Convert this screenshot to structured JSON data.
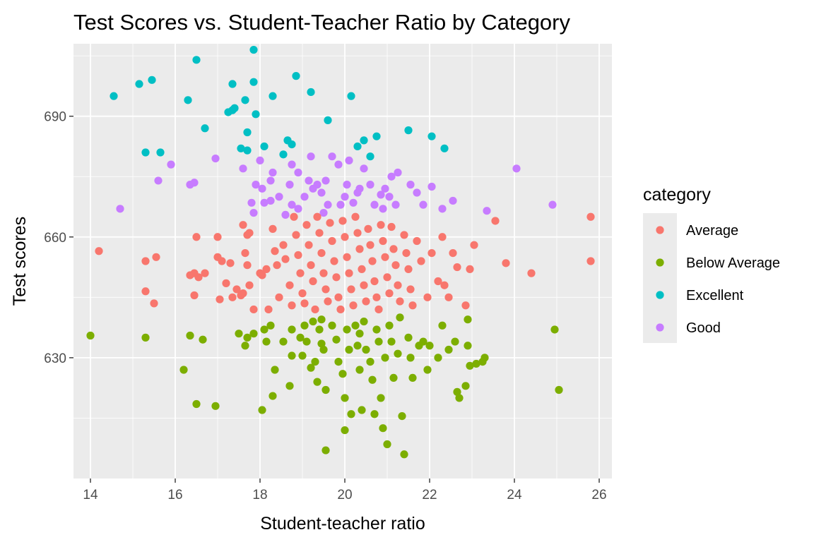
{
  "chart_data": {
    "type": "scatter",
    "title": "Test Scores vs. Student-Teacher Ratio by Category",
    "xlabel": "Student-teacher ratio",
    "ylabel": "Test scores",
    "xlim": [
      13.6,
      26.3
    ],
    "ylim": [
      600,
      708
    ],
    "x_ticks": [
      14,
      16,
      18,
      20,
      22,
      24,
      26
    ],
    "y_ticks": [
      630,
      660,
      690
    ],
    "grid": true,
    "legend": {
      "title": "category",
      "position": "right",
      "entries": [
        {
          "name": "Average",
          "color": "#F8766D"
        },
        {
          "name": "Below Average",
          "color": "#7CAE00"
        },
        {
          "name": "Excellent",
          "color": "#00BFC4"
        },
        {
          "name": "Good",
          "color": "#C77CFF"
        }
      ]
    },
    "series": [
      {
        "name": "Excellent",
        "color": "#00BFC4",
        "points": [
          [
            14.55,
            695
          ],
          [
            15.15,
            698
          ],
          [
            15.45,
            699
          ],
          [
            15.3,
            681
          ],
          [
            15.65,
            681
          ],
          [
            16.3,
            694
          ],
          [
            16.5,
            704
          ],
          [
            16.7,
            687
          ],
          [
            17.25,
            691
          ],
          [
            17.35,
            691.5
          ],
          [
            17.4,
            692
          ],
          [
            17.35,
            698
          ],
          [
            17.65,
            694
          ],
          [
            17.7,
            686
          ],
          [
            17.55,
            682
          ],
          [
            17.7,
            681.5
          ],
          [
            17.9,
            690.5
          ],
          [
            17.85,
            698.5
          ],
          [
            17.85,
            706.5
          ],
          [
            18.1,
            682.5
          ],
          [
            18.3,
            695
          ],
          [
            18.55,
            680.5
          ],
          [
            18.65,
            684
          ],
          [
            18.75,
            683
          ],
          [
            18.85,
            700
          ],
          [
            19.2,
            696
          ],
          [
            19.6,
            689
          ],
          [
            20.15,
            695
          ],
          [
            20.3,
            682.5
          ],
          [
            20.45,
            684
          ],
          [
            20.6,
            680
          ],
          [
            20.75,
            685
          ],
          [
            21.5,
            686.5
          ],
          [
            22.05,
            685
          ],
          [
            22.35,
            682
          ]
        ]
      },
      {
        "name": "Good",
        "color": "#C77CFF",
        "points": [
          [
            14.7,
            667
          ],
          [
            15.6,
            674
          ],
          [
            15.9,
            678
          ],
          [
            16.35,
            673
          ],
          [
            16.45,
            673.5
          ],
          [
            16.95,
            679.5
          ],
          [
            17.6,
            677
          ],
          [
            17.9,
            673
          ],
          [
            17.8,
            668.5
          ],
          [
            17.85,
            666
          ],
          [
            18.05,
            672
          ],
          [
            18.0,
            679
          ],
          [
            18.25,
            674
          ],
          [
            18.3,
            676
          ],
          [
            18.1,
            668.5
          ],
          [
            18.25,
            669
          ],
          [
            18.45,
            670
          ],
          [
            18.6,
            665.5
          ],
          [
            18.75,
            668
          ],
          [
            18.7,
            673
          ],
          [
            18.75,
            678
          ],
          [
            18.9,
            676
          ],
          [
            18.9,
            667
          ],
          [
            19.05,
            670
          ],
          [
            19.15,
            674
          ],
          [
            19.2,
            680
          ],
          [
            19.25,
            672
          ],
          [
            19.35,
            673
          ],
          [
            19.45,
            671
          ],
          [
            19.5,
            666
          ],
          [
            19.55,
            674
          ],
          [
            19.6,
            668
          ],
          [
            19.7,
            680
          ],
          [
            19.85,
            678
          ],
          [
            19.9,
            668
          ],
          [
            20.0,
            670
          ],
          [
            20.1,
            679
          ],
          [
            20.05,
            673
          ],
          [
            20.2,
            668.5
          ],
          [
            20.3,
            671
          ],
          [
            20.35,
            672
          ],
          [
            20.45,
            677
          ],
          [
            20.6,
            673
          ],
          [
            20.7,
            668
          ],
          [
            20.85,
            670.5
          ],
          [
            20.9,
            667
          ],
          [
            20.95,
            672
          ],
          [
            21.05,
            670
          ],
          [
            21.1,
            675
          ],
          [
            21.2,
            668
          ],
          [
            21.25,
            676
          ],
          [
            21.55,
            673
          ],
          [
            21.7,
            671
          ],
          [
            21.85,
            668
          ],
          [
            22.05,
            672.5
          ],
          [
            22.3,
            667
          ],
          [
            22.55,
            669
          ],
          [
            23.35,
            666.5
          ],
          [
            24.05,
            677
          ],
          [
            24.9,
            668
          ]
        ]
      },
      {
        "name": "Average",
        "color": "#F8766D",
        "points": [
          [
            14.2,
            656.5
          ],
          [
            15.3,
            654
          ],
          [
            15.55,
            655
          ],
          [
            15.3,
            646.5
          ],
          [
            15.5,
            643.5
          ],
          [
            16.35,
            650.5
          ],
          [
            16.5,
            660
          ],
          [
            16.45,
            651
          ],
          [
            16.55,
            650
          ],
          [
            16.7,
            651
          ],
          [
            16.45,
            645.5
          ],
          [
            17.0,
            660
          ],
          [
            17.0,
            655
          ],
          [
            17.1,
            654
          ],
          [
            17.05,
            644.5
          ],
          [
            17.2,
            648.5
          ],
          [
            17.3,
            653.5
          ],
          [
            17.35,
            645
          ],
          [
            17.45,
            647
          ],
          [
            17.55,
            645.5
          ],
          [
            17.6,
            663
          ],
          [
            17.7,
            660.5
          ],
          [
            17.75,
            661
          ],
          [
            17.65,
            656
          ],
          [
            17.7,
            653
          ],
          [
            17.75,
            648
          ],
          [
            17.6,
            646
          ],
          [
            17.85,
            642
          ],
          [
            18.0,
            651
          ],
          [
            18.05,
            650.5
          ],
          [
            18.15,
            652
          ],
          [
            18.2,
            642
          ],
          [
            18.3,
            662
          ],
          [
            18.35,
            656.5
          ],
          [
            18.4,
            653
          ],
          [
            18.45,
            645
          ],
          [
            18.55,
            658
          ],
          [
            18.6,
            654.5
          ],
          [
            18.7,
            648
          ],
          [
            18.75,
            643
          ],
          [
            18.8,
            665
          ],
          [
            18.85,
            660.5
          ],
          [
            18.9,
            655.5
          ],
          [
            18.95,
            651
          ],
          [
            19.0,
            646
          ],
          [
            19.05,
            643.5
          ],
          [
            19.1,
            663
          ],
          [
            19.15,
            658
          ],
          [
            19.2,
            653
          ],
          [
            19.25,
            649
          ],
          [
            19.3,
            642
          ],
          [
            19.35,
            665
          ],
          [
            19.4,
            661
          ],
          [
            19.45,
            656
          ],
          [
            19.5,
            651
          ],
          [
            19.55,
            647
          ],
          [
            19.6,
            644
          ],
          [
            19.65,
            663.5
          ],
          [
            19.7,
            659
          ],
          [
            19.75,
            654
          ],
          [
            19.8,
            650
          ],
          [
            19.85,
            645
          ],
          [
            19.9,
            642
          ],
          [
            19.95,
            664
          ],
          [
            20.0,
            660
          ],
          [
            20.05,
            655
          ],
          [
            20.1,
            651
          ],
          [
            20.15,
            647
          ],
          [
            20.2,
            643
          ],
          [
            20.25,
            665
          ],
          [
            20.3,
            661
          ],
          [
            20.35,
            657
          ],
          [
            20.4,
            652
          ],
          [
            20.45,
            648
          ],
          [
            20.5,
            644
          ],
          [
            20.55,
            662
          ],
          [
            20.6,
            658
          ],
          [
            20.65,
            654
          ],
          [
            20.7,
            649
          ],
          [
            20.75,
            645
          ],
          [
            20.8,
            642
          ],
          [
            20.85,
            663
          ],
          [
            20.9,
            659
          ],
          [
            20.95,
            655
          ],
          [
            21.0,
            650
          ],
          [
            21.05,
            646
          ],
          [
            21.1,
            662.5
          ],
          [
            21.15,
            657
          ],
          [
            21.2,
            653
          ],
          [
            21.25,
            648
          ],
          [
            21.3,
            644
          ],
          [
            21.4,
            660.5
          ],
          [
            21.45,
            656
          ],
          [
            21.5,
            652
          ],
          [
            21.55,
            647
          ],
          [
            21.6,
            643
          ],
          [
            21.7,
            659
          ],
          [
            21.8,
            654
          ],
          [
            21.95,
            645
          ],
          [
            22.05,
            656
          ],
          [
            22.2,
            649
          ],
          [
            22.3,
            660
          ],
          [
            22.35,
            648
          ],
          [
            22.45,
            645
          ],
          [
            22.55,
            656
          ],
          [
            22.65,
            652.5
          ],
          [
            22.85,
            643
          ],
          [
            22.95,
            652
          ],
          [
            23.05,
            658
          ],
          [
            23.55,
            664
          ],
          [
            23.8,
            653.5
          ],
          [
            24.4,
            651
          ],
          [
            25.8,
            665
          ],
          [
            25.8,
            654
          ]
        ]
      },
      {
        "name": "Below Average",
        "color": "#7CAE00",
        "points": [
          [
            14.0,
            635.5
          ],
          [
            15.3,
            635
          ],
          [
            16.2,
            627
          ],
          [
            16.35,
            635.5
          ],
          [
            16.5,
            618.5
          ],
          [
            16.65,
            634.5
          ],
          [
            16.95,
            618
          ],
          [
            17.5,
            636
          ],
          [
            17.65,
            633
          ],
          [
            17.7,
            635
          ],
          [
            17.85,
            636
          ],
          [
            18.05,
            617
          ],
          [
            18.1,
            637
          ],
          [
            18.15,
            634
          ],
          [
            18.25,
            638
          ],
          [
            18.3,
            620.5
          ],
          [
            18.35,
            627
          ],
          [
            18.55,
            634
          ],
          [
            18.7,
            623
          ],
          [
            18.75,
            637
          ],
          [
            18.95,
            635
          ],
          [
            19.0,
            630.5
          ],
          [
            19.05,
            638
          ],
          [
            19.1,
            634
          ],
          [
            19.2,
            627.5
          ],
          [
            19.25,
            639
          ],
          [
            19.3,
            629
          ],
          [
            19.35,
            624
          ],
          [
            19.4,
            637
          ],
          [
            19.45,
            639.5
          ],
          [
            19.5,
            632
          ],
          [
            19.55,
            622
          ],
          [
            19.55,
            607
          ],
          [
            19.7,
            638
          ],
          [
            19.8,
            634.5
          ],
          [
            19.85,
            629
          ],
          [
            19.95,
            626
          ],
          [
            20.0,
            620
          ],
          [
            20.05,
            637
          ],
          [
            20.1,
            632
          ],
          [
            20.15,
            616
          ],
          [
            20.0,
            612
          ],
          [
            20.25,
            638
          ],
          [
            20.3,
            633
          ],
          [
            20.35,
            627
          ],
          [
            20.4,
            617
          ],
          [
            20.45,
            639
          ],
          [
            20.5,
            632
          ],
          [
            20.6,
            629
          ],
          [
            20.65,
            624.5
          ],
          [
            20.7,
            616
          ],
          [
            20.75,
            637
          ],
          [
            20.8,
            634
          ],
          [
            20.85,
            620
          ],
          [
            20.9,
            612.5
          ],
          [
            20.95,
            630
          ],
          [
            21.0,
            608.5
          ],
          [
            21.05,
            638
          ],
          [
            21.1,
            634
          ],
          [
            21.15,
            625
          ],
          [
            21.25,
            631
          ],
          [
            21.35,
            615.5
          ],
          [
            21.4,
            606
          ],
          [
            21.5,
            635
          ],
          [
            21.55,
            630
          ],
          [
            21.6,
            625
          ],
          [
            21.75,
            633
          ],
          [
            21.85,
            634
          ],
          [
            21.95,
            627
          ],
          [
            22.0,
            633
          ],
          [
            22.2,
            630
          ],
          [
            22.3,
            638
          ],
          [
            22.45,
            632
          ],
          [
            22.6,
            634
          ],
          [
            22.65,
            621.5
          ],
          [
            22.7,
            620
          ],
          [
            22.85,
            623
          ],
          [
            22.9,
            633
          ],
          [
            22.95,
            628
          ],
          [
            23.1,
            628.5
          ],
          [
            23.3,
            630
          ],
          [
            23.25,
            629
          ],
          [
            24.95,
            637
          ],
          [
            25.05,
            622
          ],
          [
            22.9,
            639.5
          ],
          [
            20.35,
            636
          ],
          [
            18.75,
            630.5
          ],
          [
            19.45,
            633.5
          ],
          [
            21.3,
            640
          ]
        ]
      }
    ]
  }
}
